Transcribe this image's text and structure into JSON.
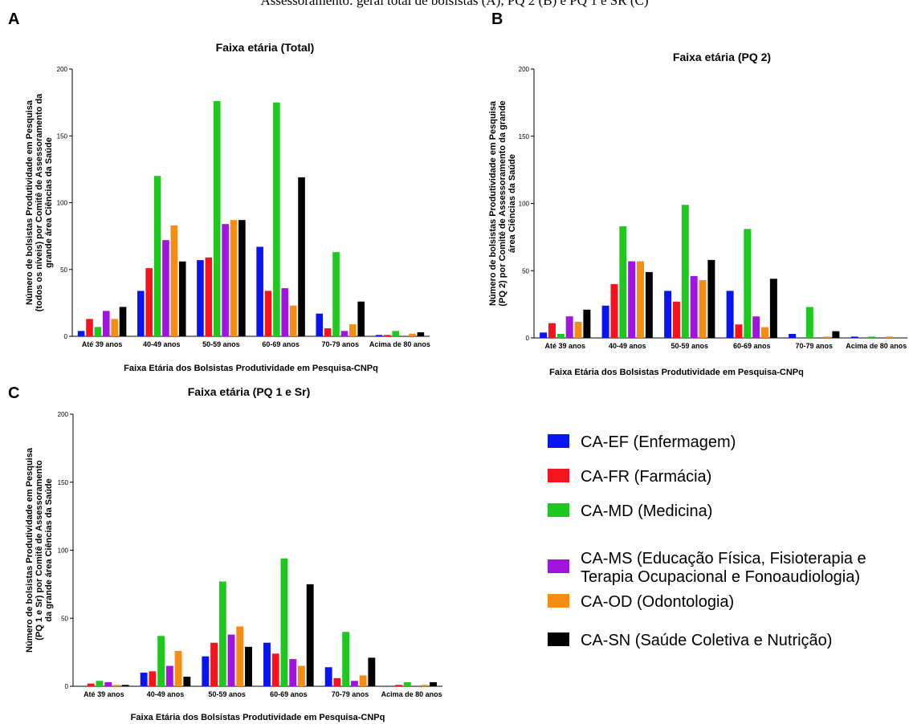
{
  "caption": "Assessoramento: geral total de bolsistas (A), PQ 2 (B) e PQ 1 e SR (C)",
  "colors": {
    "CA-EF": "#0a14ee",
    "CA-FR": "#f5141e",
    "CA-MD": "#1ec81e",
    "CA-MS": "#a014dc",
    "CA-OD": "#f58c14",
    "CA-SN": "#000000"
  },
  "legend": [
    {
      "key": "CA-EF",
      "lines": [
        "CA-EF (Enfermagem)"
      ]
    },
    {
      "key": "CA-FR",
      "lines": [
        "CA-FR (Farmácia)"
      ]
    },
    {
      "key": "CA-MD",
      "lines": [
        "CA-MD (Medicina)"
      ]
    },
    {
      "key": "CA-MS",
      "lines": [
        "CA-MS (Educação Física, Fisioterapia e",
        "Terapia Ocupacional e Fonoaudiologia)"
      ]
    },
    {
      "key": "CA-OD",
      "lines": [
        "CA-OD (Odontologia)"
      ]
    },
    {
      "key": "CA-SN",
      "lines": [
        "CA-SN (Saúde Coletiva e Nutrição)"
      ]
    }
  ],
  "chart_data": [
    {
      "panel": "A",
      "type": "bar",
      "title": "Faixa etária (Total)",
      "xlabel": "Faixa Etária dos Bolsistas Produtividade em Pesquisa-CNPq",
      "ylabel": [
        "Número de bolsistas Produtividade em Pesquisa",
        "(todos os níveis) por Comitê de  Assessoramento da",
        "grande área Ciências da Saúde"
      ],
      "ylim": [
        0,
        200
      ],
      "yticks": [
        0,
        50,
        100,
        150,
        200
      ],
      "categories": [
        "Até 39 anos",
        "40-49 anos",
        "50-59 anos",
        "60-69 anos",
        "70-79 anos",
        "Acima de 80 anos"
      ],
      "series": [
        {
          "name": "CA-EF",
          "values": [
            4,
            34,
            57,
            67,
            17,
            1
          ]
        },
        {
          "name": "CA-FR",
          "values": [
            13,
            51,
            59,
            34,
            6,
            1
          ]
        },
        {
          "name": "CA-MD",
          "values": [
            7,
            120,
            176,
            175,
            63,
            4
          ]
        },
        {
          "name": "CA-MS",
          "values": [
            19,
            72,
            84,
            36,
            4,
            0
          ]
        },
        {
          "name": "CA-OD",
          "values": [
            13,
            83,
            87,
            23,
            9,
            2
          ]
        },
        {
          "name": "CA-SN",
          "values": [
            22,
            56,
            87,
            119,
            26,
            3
          ]
        }
      ]
    },
    {
      "panel": "B",
      "type": "bar",
      "title": "Faixa etária (PQ 2)",
      "xlabel": "Faixa Etária dos Bolsistas Produtividade em Pesquisa-CNPq",
      "ylabel": [
        "Número de bolsistas Produtividade em Pesquisa",
        "(PQ 2) por Comitê de  Assessoramento da grande",
        "área Ciências da Saúde"
      ],
      "ylim": [
        0,
        200
      ],
      "yticks": [
        0,
        50,
        100,
        150,
        200
      ],
      "categories": [
        "Até 39 anos",
        "40-49 anos",
        "50-59 anos",
        "60-69 anos",
        "70-79 anos",
        "Acima de 80 anos"
      ],
      "series": [
        {
          "name": "CA-EF",
          "values": [
            4,
            24,
            35,
            35,
            3,
            1
          ]
        },
        {
          "name": "CA-FR",
          "values": [
            11,
            40,
            27,
            10,
            0,
            0
          ]
        },
        {
          "name": "CA-MD",
          "values": [
            3,
            83,
            99,
            81,
            23,
            1
          ]
        },
        {
          "name": "CA-MS",
          "values": [
            16,
            57,
            46,
            16,
            0,
            0
          ]
        },
        {
          "name": "CA-OD",
          "values": [
            12,
            57,
            43,
            8,
            1,
            1
          ]
        },
        {
          "name": "CA-SN",
          "values": [
            21,
            49,
            58,
            44,
            5,
            0
          ]
        }
      ]
    },
    {
      "panel": "C",
      "type": "bar",
      "title": "Faixa etária (PQ 1 e Sr)",
      "xlabel": "Faixa Etária dos Bolsistas Produtividade em Pesquisa-CNPq",
      "ylabel": [
        "Número de bolsistas Produtividade em Pesquisa",
        "(PQ 1 e Sr) por Comitê de  Assessoramento",
        "da grande área Ciências da Saúde"
      ],
      "ylim": [
        0,
        200
      ],
      "yticks": [
        0,
        50,
        100,
        150,
        200
      ],
      "categories": [
        "Até 39 anos",
        "40-49 anos",
        "50-59 anos",
        "60-69 anos",
        "70-79 anos",
        "Acima de 80 anos"
      ],
      "series": [
        {
          "name": "CA-EF",
          "values": [
            0,
            10,
            22,
            32,
            14,
            0
          ]
        },
        {
          "name": "CA-FR",
          "values": [
            2,
            11,
            32,
            24,
            6,
            1
          ]
        },
        {
          "name": "CA-MD",
          "values": [
            4,
            37,
            77,
            94,
            40,
            3
          ]
        },
        {
          "name": "CA-MS",
          "values": [
            3,
            15,
            38,
            20,
            4,
            0
          ]
        },
        {
          "name": "CA-OD",
          "values": [
            1,
            26,
            44,
            15,
            8,
            1
          ]
        },
        {
          "name": "CA-SN",
          "values": [
            1,
            7,
            29,
            75,
            21,
            3
          ]
        }
      ]
    }
  ]
}
